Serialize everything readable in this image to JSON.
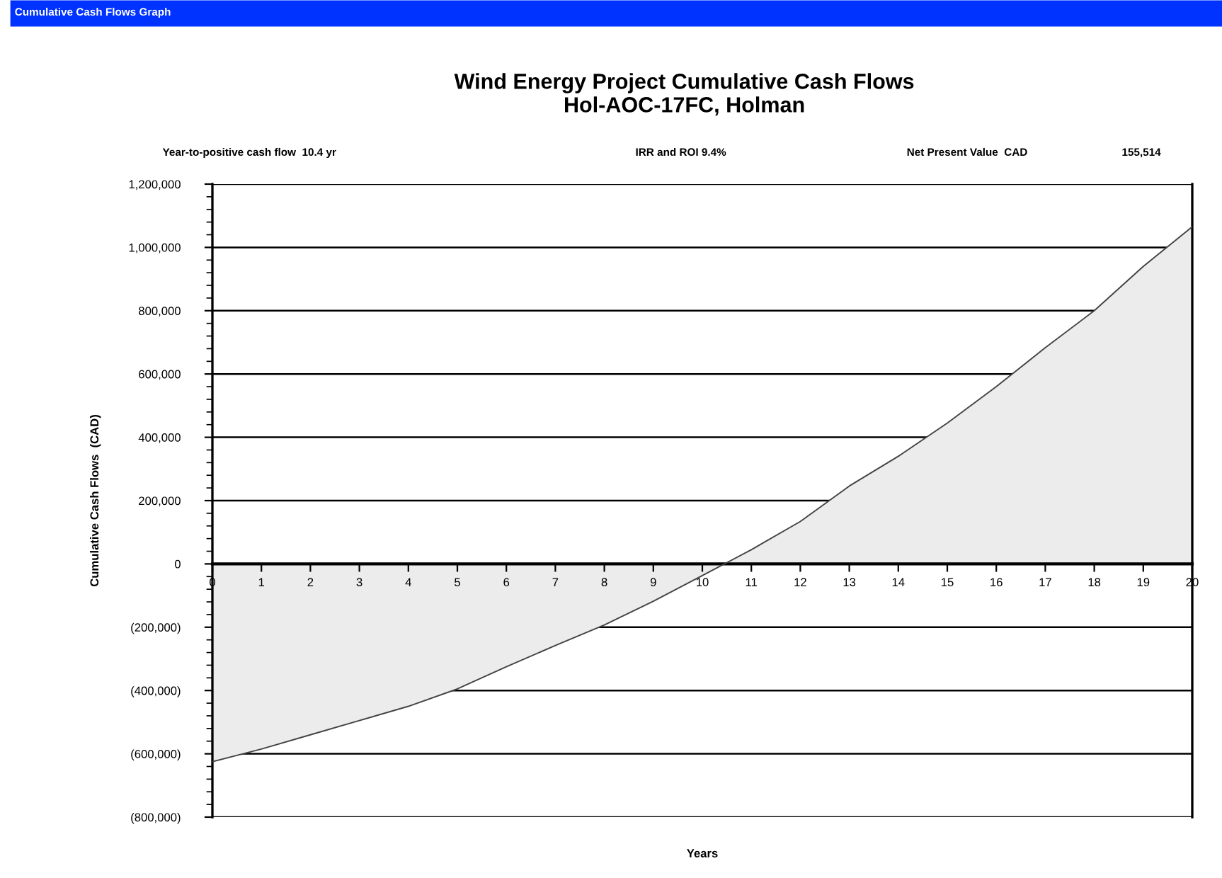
{
  "chart_data": {
    "type": "area",
    "title": "Wind Energy Project Cumulative Cash Flows\nHol-AOC-17FC, Holman",
    "xlabel": "Years",
    "ylabel": "Cumulative Cash Flows  (CAD)",
    "annotations": [
      "Cumulative Cash Flows Graph",
      "Year-to-positive cash flow  10.4 yr",
      "IRR and ROI 9.4%",
      "Net Present Value  CAD",
      "155,514"
    ],
    "x": [
      0,
      1,
      2,
      3,
      4,
      5,
      6,
      7,
      8,
      9,
      10,
      11,
      12,
      13,
      14,
      15,
      16,
      17,
      18,
      19,
      20
    ],
    "series": [
      {
        "color": "#ececec",
        "values": [
          -625000,
          -585000,
          -540000,
          -495000,
          -450000,
          -395000,
          -325000,
          -258000,
          -193000,
          -118000,
          -37000,
          45000,
          134000,
          246000,
          340000,
          445000,
          560000,
          683000,
          800000,
          940000,
          1065000
        ]
      }
    ],
    "xlim": [
      0,
      20
    ],
    "xticks": [
      0,
      1,
      2,
      3,
      4,
      5,
      6,
      7,
      8,
      9,
      10,
      11,
      12,
      13,
      14,
      15,
      16,
      17,
      18,
      19,
      20
    ],
    "ylim": [
      -800000,
      1200000
    ],
    "yticks": [
      {
        "value": -800000,
        "label": "(800,000)"
      },
      {
        "value": -600000,
        "label": "(600,000)"
      },
      {
        "value": -400000,
        "label": "(400,000)"
      },
      {
        "value": -200000,
        "label": "(200,000)"
      },
      0,
      {
        "value": 200000,
        "label": "200,000"
      },
      {
        "value": 400000,
        "label": "400,000"
      },
      {
        "value": 600000,
        "label": "600,000"
      },
      {
        "value": 800000,
        "label": "800,000"
      },
      {
        "value": 1000000,
        "label": "1,000,000"
      },
      {
        "value": 1200000,
        "label": "1,200,000"
      }
    ],
    "grid": "y",
    "legend": false,
    "marker": "none",
    "line_style": "solid"
  }
}
